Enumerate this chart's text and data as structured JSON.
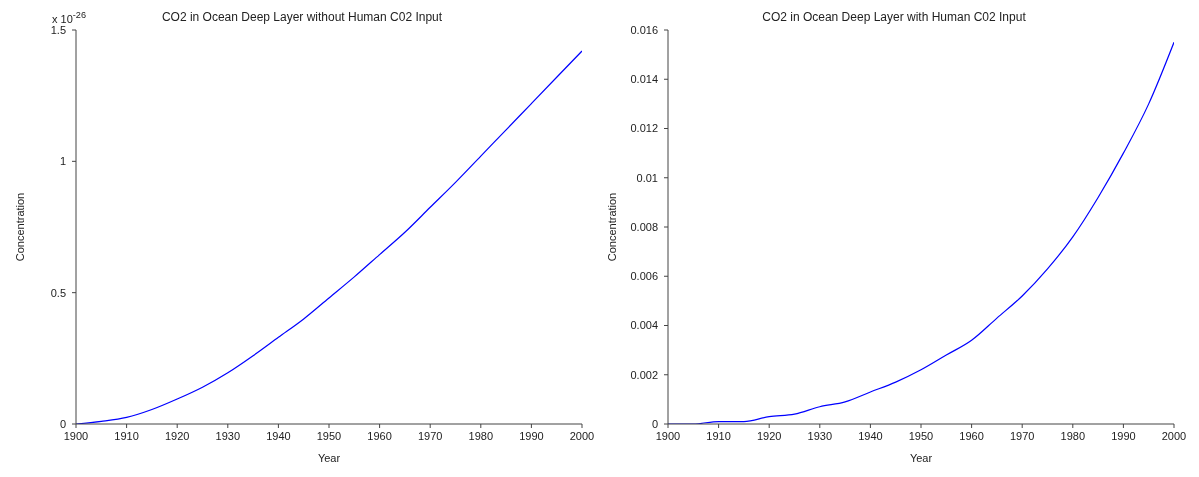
{
  "chart_data": [
    {
      "type": "line",
      "title": "CO2 in Ocean Deep Layer without Human C02 Input",
      "xlabel": "Year",
      "ylabel": "Concentration",
      "annotations": [
        "x 10$^{-26}$"
      ],
      "x": [
        1900,
        1905,
        1910,
        1915,
        1920,
        1925,
        1930,
        1935,
        1940,
        1945,
        1950,
        1955,
        1960,
        1965,
        1970,
        1975,
        1980,
        1985,
        1990,
        1995,
        2000
      ],
      "series": [
        {
          "color": "#0000ff",
          "values": [
            0,
            0.01,
            0.025,
            0.055,
            0.095,
            0.14,
            0.195,
            0.26,
            0.33,
            0.4,
            0.48,
            0.56,
            0.645,
            0.73,
            0.825,
            0.92,
            1.02,
            1.12,
            1.22,
            1.32,
            1.42
          ]
        }
      ],
      "xlim": [
        1900,
        2000
      ],
      "xticks": [
        1900,
        1910,
        1920,
        1930,
        1940,
        1950,
        1960,
        1970,
        1980,
        1990,
        2000
      ],
      "ylim": [
        0,
        1.5
      ],
      "yticks": [
        0,
        0.5,
        1,
        1.5
      ],
      "marker": "none",
      "line_style": "solid"
    },
    {
      "type": "line",
      "title": "CO2 in Ocean Deep Layer with Human C02 Input",
      "xlabel": "Year",
      "ylabel": "Concentration",
      "x": [
        1900,
        1905,
        1910,
        1915,
        1920,
        1925,
        1930,
        1935,
        1940,
        1945,
        1950,
        1955,
        1960,
        1965,
        1970,
        1975,
        1980,
        1985,
        1990,
        1995,
        2000
      ],
      "series": [
        {
          "color": "#0000ff",
          "values": [
            0,
            0,
            0.0001,
            0.0001,
            0.0003,
            0.0004,
            0.0007,
            0.0009,
            0.0013,
            0.0017,
            0.0022,
            0.0028,
            0.0034,
            0.0043,
            0.0052,
            0.0063,
            0.0076,
            0.0092,
            0.011,
            0.013,
            0.0155
          ]
        }
      ],
      "xlim": [
        1900,
        2000
      ],
      "xticks": [
        1900,
        1910,
        1920,
        1930,
        1940,
        1950,
        1960,
        1970,
        1980,
        1990,
        2000
      ],
      "ylim": [
        0,
        0.016
      ],
      "yticks": [
        0,
        0.002,
        0.004,
        0.006,
        0.008,
        0.01,
        0.012,
        0.014,
        0.016
      ],
      "marker": "none",
      "line_style": "solid"
    }
  ]
}
